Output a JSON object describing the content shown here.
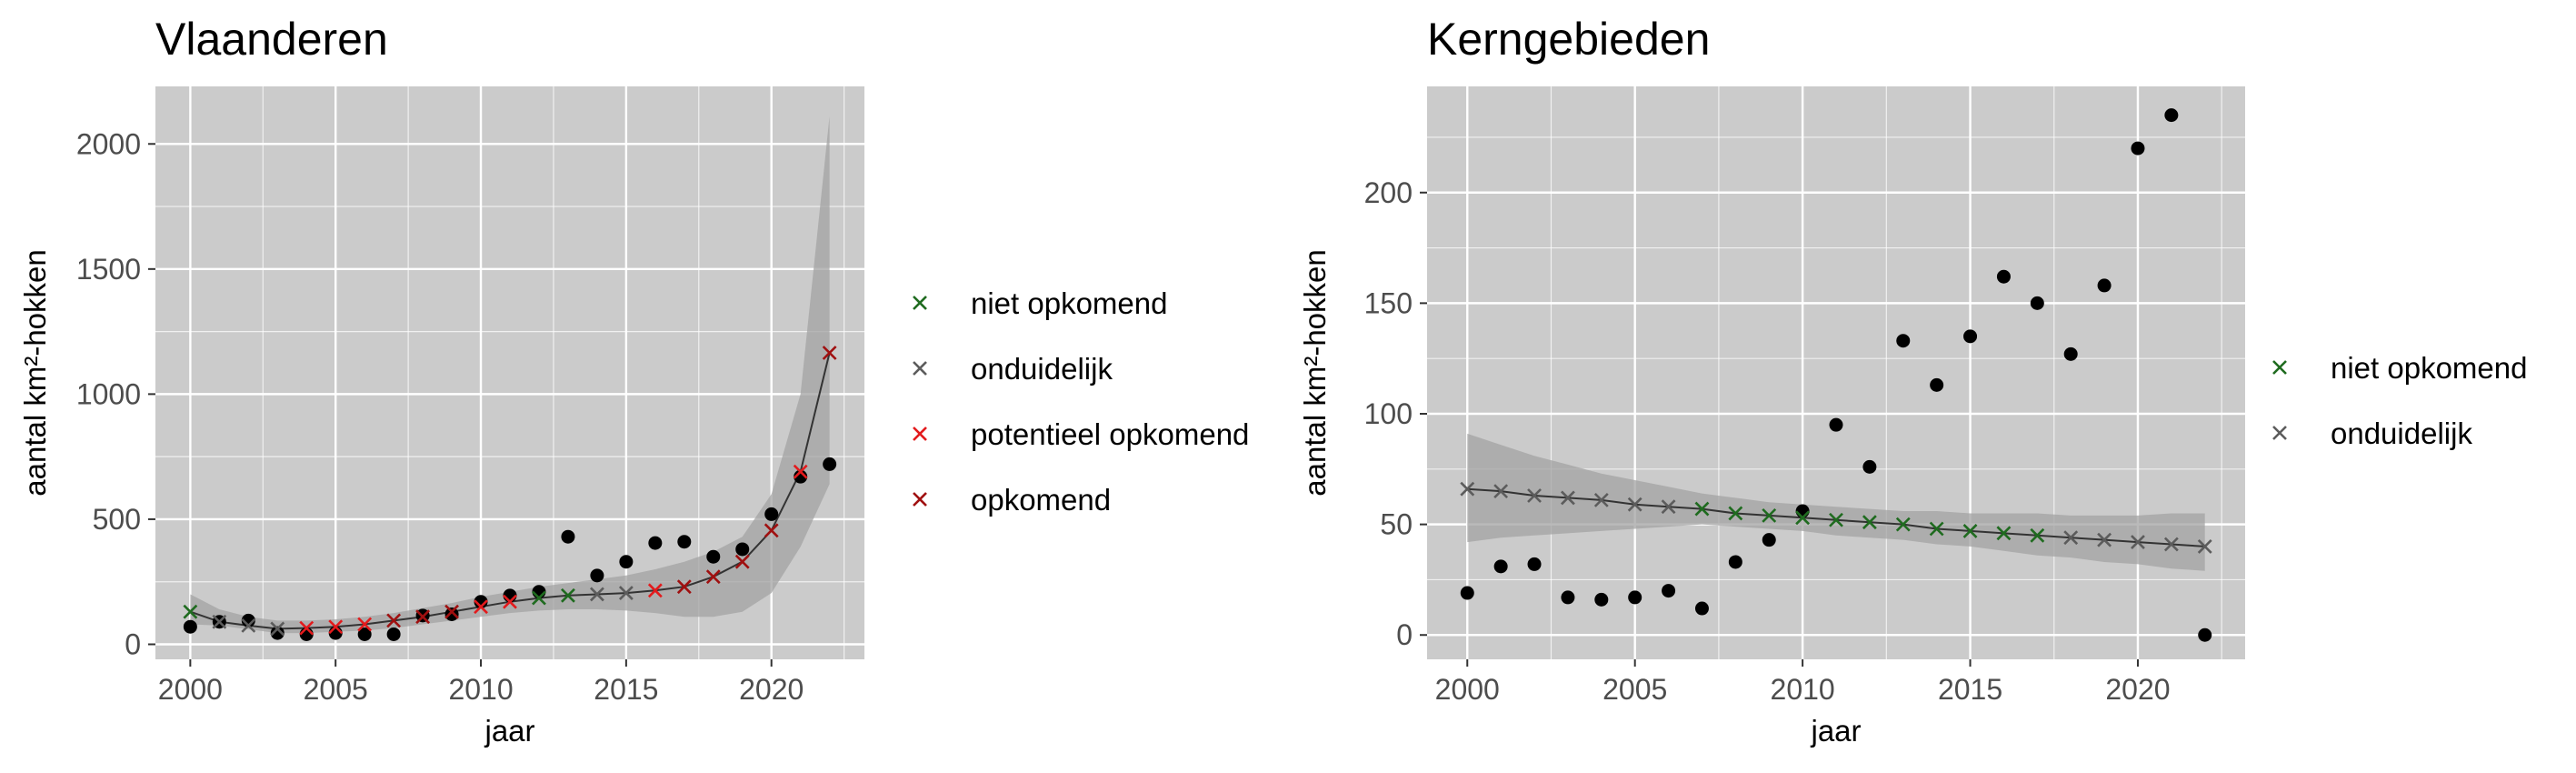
{
  "chart_data": [
    {
      "type": "scatter",
      "title": "Vlaanderen",
      "xlabel": "jaar",
      "ylabel": "aantal km²-hokken",
      "xlim": [
        1998.8,
        2023.2
      ],
      "ylim": [
        -60,
        2230
      ],
      "xticks": [
        2000,
        2005,
        2010,
        2015,
        2020
      ],
      "yticks": [
        0,
        500,
        1000,
        1500,
        2000
      ],
      "grid": true,
      "legend_position": "right",
      "legend": [
        "niet opkomend",
        "onduidelijk",
        "potentieel opkomend",
        "opkomend"
      ],
      "observed": {
        "x": [
          2000,
          2001,
          2002,
          2003,
          2004,
          2005,
          2006,
          2007,
          2008,
          2009,
          2010,
          2011,
          2012,
          2013,
          2014,
          2015,
          2016,
          2017,
          2018,
          2019,
          2020,
          2021,
          2022
        ],
        "y": [
          70,
          90,
          95,
          45,
          40,
          45,
          40,
          40,
          115,
          120,
          170,
          195,
          210,
          430,
          275,
          330,
          405,
          410,
          350,
          380,
          520,
          670,
          720
        ]
      },
      "trend": {
        "x": [
          2000,
          2001,
          2002,
          2003,
          2004,
          2005,
          2006,
          2007,
          2008,
          2009,
          2010,
          2011,
          2012,
          2013,
          2014,
          2015,
          2016,
          2017,
          2018,
          2019,
          2020,
          2021,
          2022
        ],
        "y": [
          130,
          90,
          75,
          62,
          65,
          70,
          80,
          95,
          110,
          130,
          150,
          170,
          185,
          195,
          200,
          205,
          215,
          230,
          270,
          330,
          455,
          690,
          1165
        ],
        "status": [
          "niet opkomend",
          "onduidelijk",
          "onduidelijk",
          "onduidelijk",
          "potentieel opkomend",
          "potentieel opkomend",
          "potentieel opkomend",
          "opkomend",
          "opkomend",
          "opkomend",
          "potentieel opkomend",
          "potentieel opkomend",
          "niet opkomend",
          "niet opkomend",
          "onduidelijk",
          "onduidelijk",
          "potentieel opkomend",
          "opkomend",
          "opkomend",
          "opkomend",
          "opkomend",
          "potentieel opkomend",
          "opkomend"
        ],
        "lower": [
          80,
          75,
          60,
          45,
          45,
          50,
          55,
          65,
          80,
          95,
          110,
          125,
          135,
          140,
          140,
          135,
          125,
          110,
          110,
          130,
          205,
          390,
          640
        ],
        "upper": [
          200,
          140,
          110,
          95,
          95,
          100,
          110,
          125,
          145,
          165,
          190,
          210,
          230,
          245,
          260,
          275,
          300,
          330,
          370,
          430,
          600,
          1000,
          2110
        ]
      }
    },
    {
      "type": "scatter",
      "title": "Kerngebieden",
      "xlabel": "jaar",
      "ylabel": "aantal km²-hokken",
      "xlim": [
        1998.8,
        2023.2
      ],
      "ylim": [
        -11,
        248
      ],
      "xticks": [
        2000,
        2005,
        2010,
        2015,
        2020
      ],
      "yticks": [
        0,
        50,
        100,
        150,
        200
      ],
      "grid": true,
      "legend_position": "right",
      "legend": [
        "niet opkomend",
        "onduidelijk"
      ],
      "observed": {
        "x": [
          2000,
          2001,
          2002,
          2003,
          2004,
          2005,
          2006,
          2007,
          2008,
          2009,
          2010,
          2011,
          2012,
          2013,
          2014,
          2015,
          2016,
          2017,
          2018,
          2019,
          2020,
          2021,
          2022
        ],
        "y": [
          19,
          31,
          32,
          17,
          16,
          17,
          20,
          12,
          33,
          43,
          56,
          95,
          76,
          133,
          113,
          135,
          162,
          150,
          127,
          158,
          220,
          235,
          0
        ]
      },
      "trend": {
        "x": [
          2000,
          2001,
          2002,
          2003,
          2004,
          2005,
          2006,
          2007,
          2008,
          2009,
          2010,
          2011,
          2012,
          2013,
          2014,
          2015,
          2016,
          2017,
          2018,
          2019,
          2020,
          2021,
          2022
        ],
        "y": [
          66,
          65,
          63,
          62,
          61,
          59,
          58,
          57,
          55,
          54,
          53,
          52,
          51,
          50,
          48,
          47,
          46,
          45,
          44,
          43,
          42,
          41,
          40
        ],
        "status": [
          "onduidelijk",
          "onduidelijk",
          "onduidelijk",
          "onduidelijk",
          "onduidelijk",
          "onduidelijk",
          "onduidelijk",
          "niet opkomend",
          "niet opkomend",
          "niet opkomend",
          "niet opkomend",
          "niet opkomend",
          "niet opkomend",
          "niet opkomend",
          "niet opkomend",
          "niet opkomend",
          "niet opkomend",
          "niet opkomend",
          "onduidelijk",
          "onduidelijk",
          "onduidelijk",
          "onduidelijk",
          "onduidelijk"
        ],
        "lower": [
          42,
          44,
          45,
          46,
          47,
          48,
          49,
          50,
          49,
          48,
          47,
          45,
          44,
          43,
          41,
          40,
          38,
          36,
          35,
          33,
          32,
          30,
          29
        ],
        "upper": [
          91,
          86,
          81,
          77,
          73,
          70,
          67,
          64,
          62,
          60,
          59,
          58,
          57,
          56,
          56,
          55,
          55,
          55,
          54,
          54,
          54,
          55,
          55
        ]
      }
    }
  ],
  "colors": {
    "panel_background": "#cbcbcb",
    "grid": "#ffffff",
    "ribbon": "#a3a3a3",
    "trend_line": "#333333",
    "observed_point": "#000000",
    "niet opkomend": "#1f6b1f",
    "onduidelijk": "#5c5c5c",
    "potentieel opkomend": "#e31a1c",
    "opkomend": "#a01010"
  }
}
